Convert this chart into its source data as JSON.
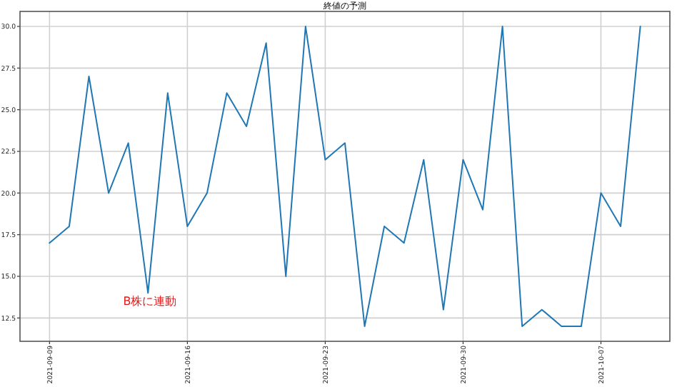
{
  "chart_data": {
    "type": "line",
    "title": "終値の予測",
    "x": [
      "2021-09-09",
      "2021-09-10",
      "2021-09-11",
      "2021-09-12",
      "2021-09-13",
      "2021-09-14",
      "2021-09-15",
      "2021-09-16",
      "2021-09-17",
      "2021-09-18",
      "2021-09-19",
      "2021-09-20",
      "2021-09-21",
      "2021-09-22",
      "2021-09-23",
      "2021-09-24",
      "2021-09-25",
      "2021-09-26",
      "2021-09-27",
      "2021-09-28",
      "2021-09-29",
      "2021-09-30",
      "2021-10-01",
      "2021-10-02",
      "2021-10-03",
      "2021-10-04",
      "2021-10-05",
      "2021-10-06",
      "2021-10-07",
      "2021-10-08",
      "2021-10-09"
    ],
    "series": [
      {
        "color": "#1f77b4",
        "values": [
          17,
          18,
          27,
          20,
          23,
          14,
          26,
          18,
          20,
          26,
          24,
          29,
          15,
          30,
          22,
          23,
          12,
          18,
          17,
          22,
          13,
          22,
          19,
          30,
          12,
          13,
          12,
          12,
          20,
          18,
          30
        ]
      }
    ],
    "annotations": [
      "B株に連動"
    ],
    "xlim": [
      "2021-09-07T12:00",
      "2021-10-10T12:00"
    ],
    "xticks": [
      "2021-09-09",
      "2021-09-16",
      "2021-09-23",
      "2021-09-30",
      "2021-10-07"
    ],
    "ylim": [
      11.1,
      30.9
    ],
    "yticks": [
      {
        "value": 12.5,
        "label": "12.5"
      },
      {
        "value": 15,
        "label": "15.0"
      },
      {
        "value": 17.5,
        "label": "17.5"
      },
      {
        "value": 20,
        "label": "20.0"
      },
      {
        "value": 22.5,
        "label": "22.5"
      },
      {
        "value": 25,
        "label": "25.0"
      },
      {
        "value": 27.5,
        "label": "27.5"
      },
      {
        "value": 30,
        "label": "30.0"
      }
    ],
    "grid": true,
    "line_style": "solid",
    "marker": "none"
  }
}
